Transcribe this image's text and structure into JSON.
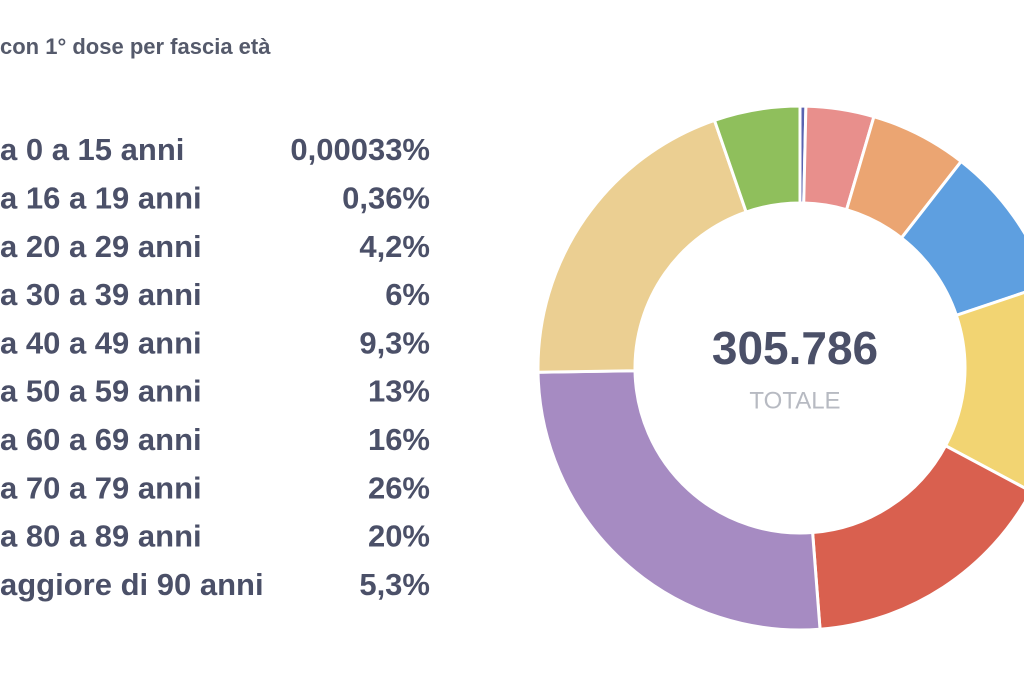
{
  "chart_data": {
    "type": "pie",
    "title": "con 1° dose per fascia età",
    "categories": [
      "a 0 a 15 anni",
      "a 16 a 19 anni",
      "a 20 a 29 anni",
      "a 30 a 39 anni",
      "a 40 a 49 anni",
      "a 50 a 59 anni",
      "a 60 a 69 anni",
      "a 70 a 79 anni",
      "a 80 a 89 anni",
      "aggiore di 90 anni"
    ],
    "values": [
      0.00033,
      0.36,
      4.2,
      6,
      9.3,
      13,
      16,
      26,
      20,
      5.3
    ],
    "value_labels": [
      "0,00033%",
      "0,36%",
      "4,2%",
      "6%",
      "9,3%",
      "13%",
      "16%",
      "26%",
      "20%",
      "5,3%"
    ],
    "colors": [
      "#3f4a9a",
      "#5a63b0",
      "#e88f8c",
      "#eba572",
      "#5e9fe0",
      "#f2d472",
      "#d9604f",
      "#a68bc2",
      "#ebcf92",
      "#8fbf5c"
    ],
    "total": {
      "value": 305786,
      "label": "305.786"
    },
    "total_caption": "TOTALE"
  }
}
